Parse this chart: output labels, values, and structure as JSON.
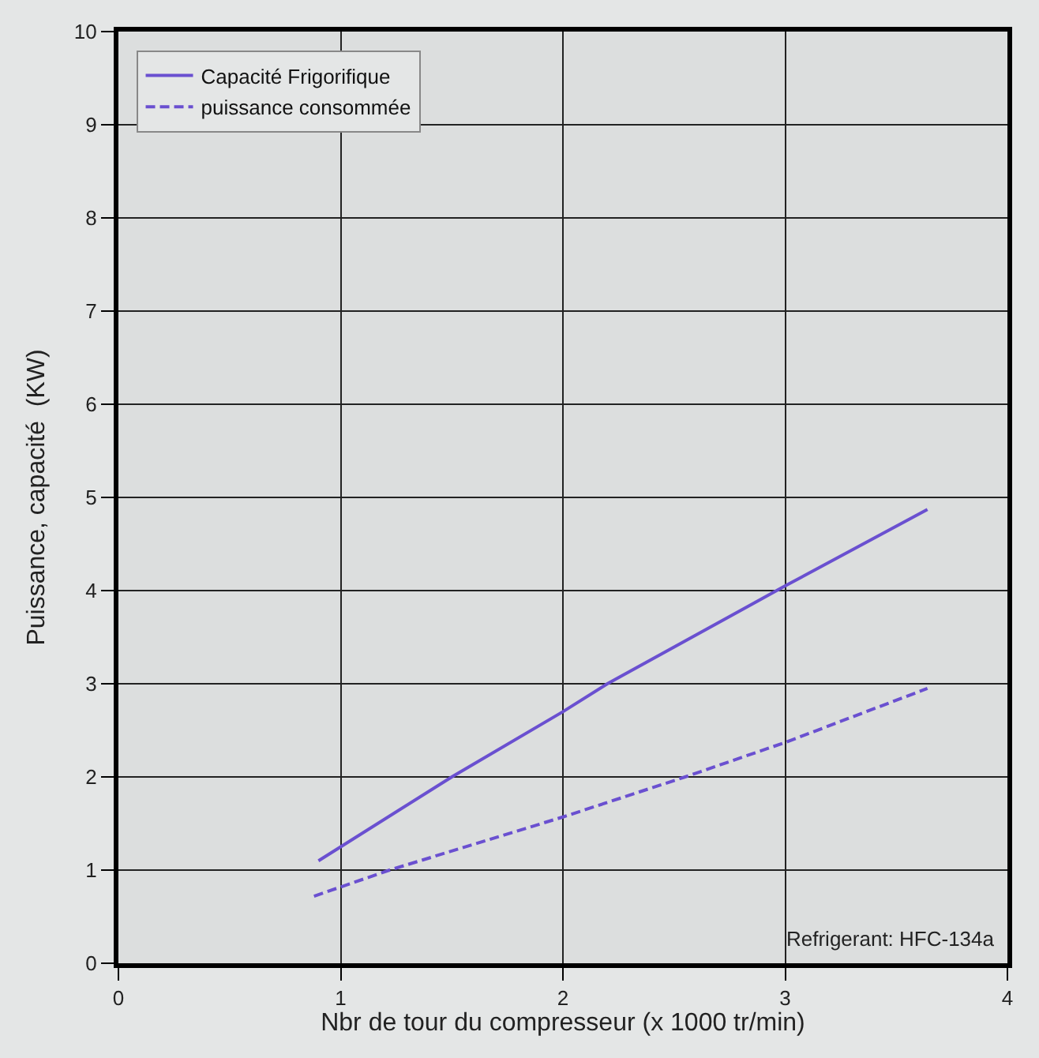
{
  "chart_data": {
    "type": "line",
    "xlabel": "Nbr de tour du compresseur (x 1000 tr/min)",
    "ylabel": "Puissance, capacité  (KW)",
    "xlim": [
      0,
      4
    ],
    "xticks": [
      0,
      1,
      2,
      3,
      4
    ],
    "ylim": [
      0,
      10
    ],
    "yticks": [
      0,
      1,
      2,
      3,
      4,
      5,
      6,
      7,
      8,
      9,
      10
    ],
    "grid": true,
    "legend": "top left",
    "marker": "none",
    "annotations": [
      "Refrigerant: HFC-134a"
    ],
    "series": [
      {
        "name": "Capacité Frigorifique",
        "color": "#6a50d0",
        "line_style": "solid",
        "x": [
          0.9,
          1.5,
          2,
          2.2,
          3,
          3.64
        ],
        "values": [
          1.1,
          2.0,
          2.7,
          3.0,
          4.05,
          4.87
        ]
      },
      {
        "name": "puissance consommée",
        "color": "#6a50d0",
        "line_style": "dashed",
        "x": [
          0.88,
          1.22,
          2,
          2.55,
          3,
          3.64
        ],
        "values": [
          0.72,
          1.0,
          1.57,
          2.0,
          2.37,
          2.95
        ]
      }
    ]
  }
}
